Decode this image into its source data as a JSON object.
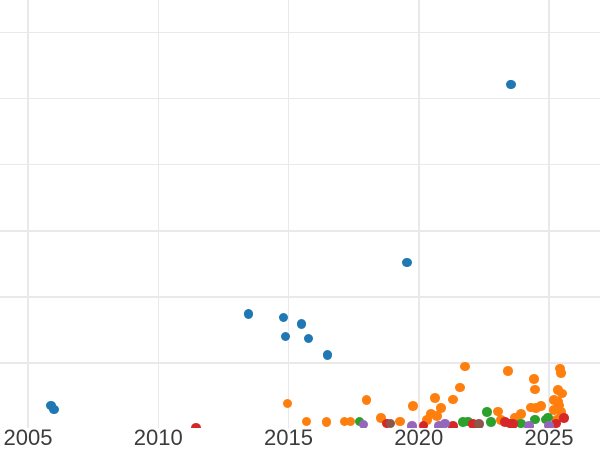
{
  "figure": {
    "background_color": "#ffffff",
    "grid_color": "#e9e9e9",
    "tick_label_color": "#3c3c3c"
  },
  "chart_data": {
    "type": "scatter",
    "title": "",
    "xlabel": "",
    "ylabel": "",
    "grid": true,
    "legend_position": "none",
    "x_tick_labels": [
      "2005",
      "2010",
      "2015",
      "2020",
      "2025"
    ],
    "x_tick_years": [
      2005,
      2010,
      2015,
      2020,
      2025
    ],
    "y_gridline_values": [
      1,
      2,
      3,
      4,
      5,
      6
    ],
    "xlim": [
      2003.9,
      2027.0
    ],
    "ylim": [
      0,
      6.49
    ],
    "y_axis_note": "y tick labels are cropped out of the visible image; values are in gridline units (0 at baseline, 1 per gridline)",
    "series": [
      {
        "name": "blue",
        "color": "#1f77b4",
        "points": [
          [
            2005.88,
            0.36
          ],
          [
            2006.0,
            0.3
          ],
          [
            2013.46,
            1.74
          ],
          [
            2014.81,
            1.69
          ],
          [
            2014.88,
            1.4
          ],
          [
            2015.5,
            1.59
          ],
          [
            2015.77,
            1.37
          ],
          [
            2016.5,
            1.12
          ],
          [
            2019.54,
            2.52
          ],
          [
            2023.54,
            5.21
          ]
        ]
      },
      {
        "name": "orange",
        "color": "#ff7f0e",
        "points": [
          [
            2014.96,
            0.39
          ],
          [
            2015.69,
            0.12
          ],
          [
            2016.46,
            0.11
          ],
          [
            2017.15,
            0.12
          ],
          [
            2017.38,
            0.12
          ],
          [
            2018.0,
            0.44
          ],
          [
            2018.54,
            0.17
          ],
          [
            2019.27,
            0.12
          ],
          [
            2019.77,
            0.35
          ],
          [
            2020.31,
            0.14
          ],
          [
            2020.46,
            0.23
          ],
          [
            2020.62,
            0.47
          ],
          [
            2020.69,
            0.2
          ],
          [
            2020.85,
            0.32
          ],
          [
            2021.31,
            0.45
          ],
          [
            2021.58,
            0.63
          ],
          [
            2021.77,
            0.95
          ],
          [
            2023.04,
            0.27
          ],
          [
            2023.15,
            0.14
          ],
          [
            2023.42,
            0.88
          ],
          [
            2023.69,
            0.18
          ],
          [
            2023.92,
            0.23
          ],
          [
            2024.31,
            0.33
          ],
          [
            2024.42,
            0.76
          ],
          [
            2024.46,
            0.6
          ],
          [
            2024.5,
            0.32
          ],
          [
            2024.69,
            0.35
          ],
          [
            2025.19,
            0.44
          ],
          [
            2025.19,
            0.29
          ],
          [
            2025.31,
            0.15
          ],
          [
            2025.35,
            0.59
          ],
          [
            2025.35,
            0.42
          ],
          [
            2025.38,
            0.36
          ],
          [
            2025.42,
            0.92
          ],
          [
            2025.46,
            0.85
          ],
          [
            2025.46,
            0.26
          ],
          [
            2025.5,
            0.54
          ]
        ]
      },
      {
        "name": "green",
        "color": "#2ca02c",
        "points": [
          [
            2017.73,
            0.12
          ],
          [
            2021.69,
            0.11
          ],
          [
            2021.88,
            0.12
          ],
          [
            2022.62,
            0.26
          ],
          [
            2022.77,
            0.11
          ],
          [
            2023.92,
            0.09
          ],
          [
            2024.46,
            0.15
          ],
          [
            2024.88,
            0.15
          ],
          [
            2024.96,
            0.18
          ]
        ]
      },
      {
        "name": "red",
        "color": "#d62728",
        "points": [
          [
            2011.46,
            0.02
          ],
          [
            2018.77,
            0.09
          ],
          [
            2020.19,
            0.06
          ],
          [
            2021.31,
            0.05
          ],
          [
            2022.08,
            0.08
          ],
          [
            2023.31,
            0.11
          ],
          [
            2023.5,
            0.09
          ],
          [
            2023.62,
            0.08
          ],
          [
            2025.27,
            0.09
          ],
          [
            2025.58,
            0.17
          ]
        ]
      },
      {
        "name": "purple",
        "color": "#9467bd",
        "points": [
          [
            2017.88,
            0.07
          ],
          [
            2019.73,
            0.05
          ],
          [
            2020.77,
            0.05
          ],
          [
            2021.0,
            0.09
          ],
          [
            2024.23,
            0.05
          ],
          [
            2025.0,
            0.06
          ]
        ]
      },
      {
        "name": "brown",
        "color": "#8c564b",
        "points": [
          [
            2018.92,
            0.09
          ],
          [
            2022.31,
            0.08
          ]
        ]
      }
    ]
  }
}
